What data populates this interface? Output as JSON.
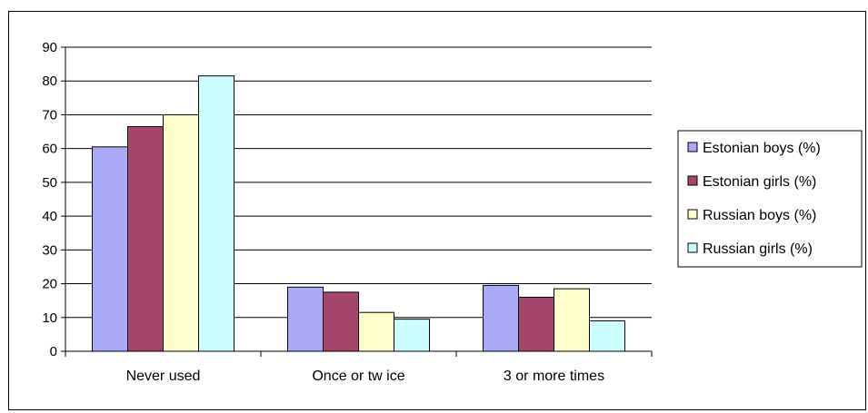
{
  "chart_data": {
    "type": "bar",
    "categories": [
      "Never used",
      "Once or tw ice",
      "3 or more times"
    ],
    "series": [
      {
        "name": "Estonian boys (%)",
        "values": [
          60.5,
          19,
          19.5
        ],
        "color": "#a9a9f5"
      },
      {
        "name": "Estonian girls (%)",
        "values": [
          66.5,
          17.5,
          16
        ],
        "color": "#a6456c"
      },
      {
        "name": "Russian boys (%)",
        "values": [
          70,
          11.5,
          18.5
        ],
        "color": "#ffffcc"
      },
      {
        "name": "Russian girls (%)",
        "values": [
          81.5,
          9.5,
          9
        ],
        "color": "#ccffff"
      }
    ],
    "ylim": [
      0,
      90
    ],
    "yticks": [
      0,
      10,
      20,
      30,
      40,
      50,
      60,
      70,
      80,
      90
    ],
    "grid": true,
    "legend_position": "right",
    "title": "",
    "xlabel": "",
    "ylabel": ""
  }
}
